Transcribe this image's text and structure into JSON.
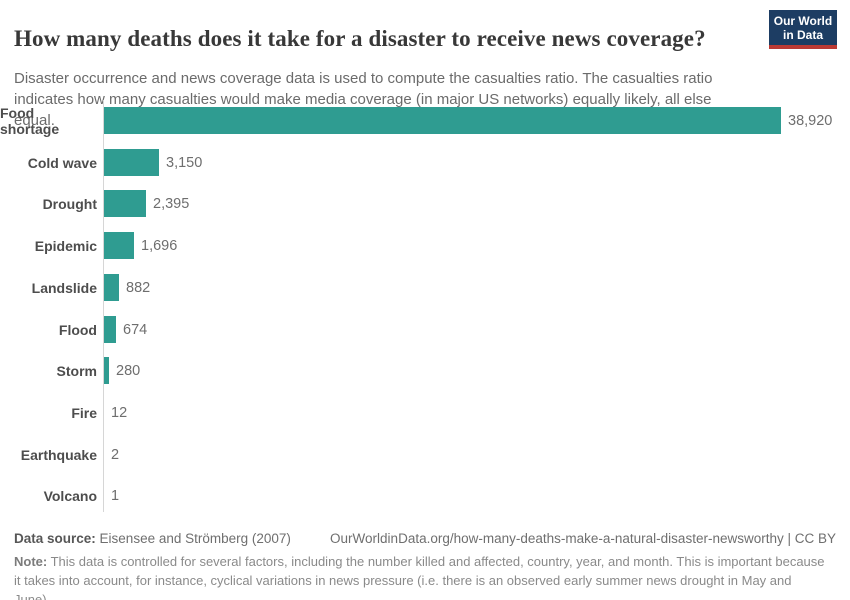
{
  "header": {
    "title": "How many deaths does it take for a disaster to receive news coverage?",
    "subtitle": "Disaster occurrence and news coverage data is used to compute the casualties ratio. The casualties ratio indicates how many casualties would make media coverage (in major US networks) equally likely, all else equal.",
    "logo": {
      "line1": "Our World",
      "line2": "in Data",
      "bg_color": "#1d3d63",
      "accent_color": "#bc3a34"
    }
  },
  "chart_data": {
    "type": "bar",
    "orientation": "horizontal",
    "title": "How many deaths does it take for a disaster to receive news coverage?",
    "categories": [
      "Food shortage",
      "Cold wave",
      "Drought",
      "Epidemic",
      "Landslide",
      "Flood",
      "Storm",
      "Fire",
      "Earthquake",
      "Volcano"
    ],
    "values": [
      38920,
      3150,
      2395,
      1696,
      882,
      674,
      280,
      12,
      2,
      1
    ],
    "value_labels": [
      "38,920",
      "3,150",
      "2,395",
      "1,696",
      "882",
      "674",
      "280",
      "12",
      "2",
      "1"
    ],
    "xlabel": "",
    "ylabel": "",
    "xlim": [
      0,
      38920
    ],
    "grid": false,
    "legend": "none",
    "bar_color": "#2f9c91",
    "axis_color": "#d6d6d6"
  },
  "footer": {
    "data_source_label": "Data source:",
    "data_source_value": "Eisensee and Strömberg (2007)",
    "citation": "OurWorldinData.org/how-many-deaths-make-a-natural-disaster-newsworthy | CC BY",
    "note_label": "Note:",
    "note_text": "This data is controlled for several factors, including the number killed and affected, country, year, and month. This is important because it takes into account, for instance, cyclical variations in news pressure (i.e. there is an observed early summer news drought in May and June)."
  }
}
